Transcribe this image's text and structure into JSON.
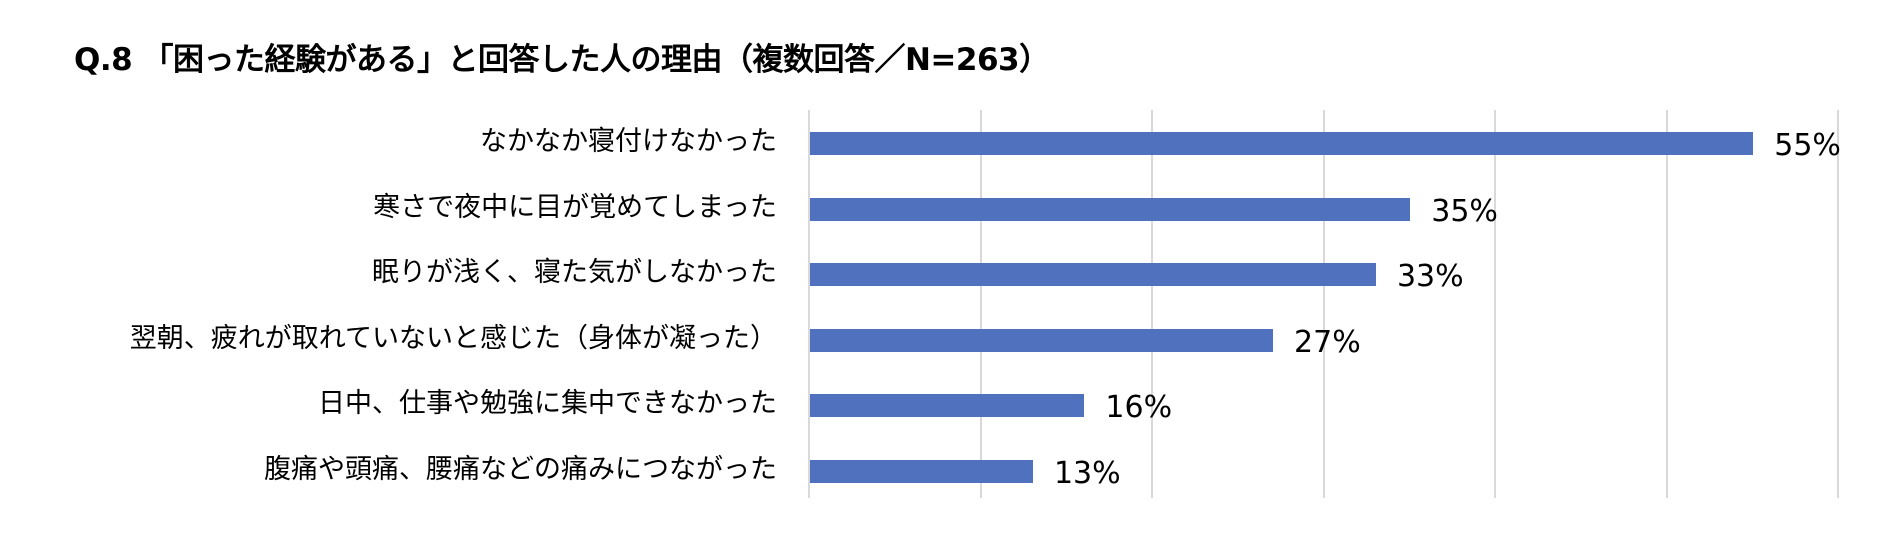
{
  "chart_data": {
    "type": "bar",
    "orientation": "horizontal",
    "title": "Q.8 「困った経験がある」と回答した人の理由（複数回答／N=263）",
    "categories": [
      "なかなか寝付けなかった",
      "寒さで夜中に目が覚めてしまった",
      "眠りが浅く、寝た気がしなかった",
      "翌朝、疲れが取れていないと感じた（身体が凝った）",
      "日中、仕事や勉強に集中できなかった",
      "腹痛や頭痛、腰痛などの痛みにつながった"
    ],
    "values": [
      55,
      35,
      33,
      27,
      16,
      13
    ],
    "value_labels": [
      "55%",
      "35%",
      "33%",
      "27%",
      "16%",
      "13%"
    ],
    "xlabel": "",
    "ylabel": "",
    "xlim": [
      0,
      60
    ],
    "grid": true,
    "gridline_step": 10,
    "legend": "none",
    "bar_color": "#4f71be",
    "gridline_color": "#d9d9d9"
  }
}
